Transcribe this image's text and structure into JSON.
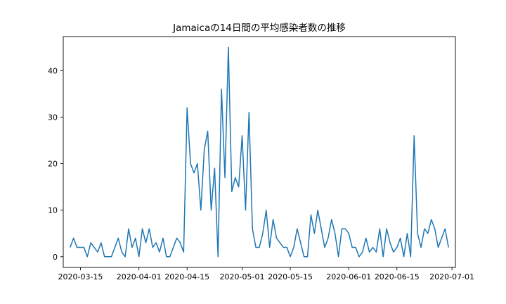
{
  "chart_data": {
    "type": "line",
    "title": "Jamaicaの14日間の平均感染者数の推移",
    "xlabel": "",
    "ylabel": "",
    "x_start": "2020-03-12",
    "x_range": [
      "2020-03-10",
      "2020-07-02"
    ],
    "ylim": [
      -2.3,
      47.3
    ],
    "x_ticks": [
      "2020-03-15",
      "2020-04-01",
      "2020-04-15",
      "2020-05-01",
      "2020-05-15",
      "2020-06-01",
      "2020-06-15",
      "2020-07-01"
    ],
    "y_ticks": [
      0,
      10,
      20,
      30,
      40
    ],
    "grid": false,
    "legend": "none",
    "series": [
      {
        "color": "#1f77b4",
        "x_dates": [
          "2020-03-12",
          "2020-03-13",
          "2020-03-14",
          "2020-03-15",
          "2020-03-16",
          "2020-03-17",
          "2020-03-18",
          "2020-03-19",
          "2020-03-20",
          "2020-03-21",
          "2020-03-22",
          "2020-03-23",
          "2020-03-24",
          "2020-03-25",
          "2020-03-26",
          "2020-03-27",
          "2020-03-28",
          "2020-03-29",
          "2020-03-30",
          "2020-03-31",
          "2020-04-01",
          "2020-04-02",
          "2020-04-03",
          "2020-04-04",
          "2020-04-05",
          "2020-04-06",
          "2020-04-07",
          "2020-04-08",
          "2020-04-09",
          "2020-04-10",
          "2020-04-11",
          "2020-04-12",
          "2020-04-13",
          "2020-04-14",
          "2020-04-15",
          "2020-04-16",
          "2020-04-17",
          "2020-04-18",
          "2020-04-19",
          "2020-04-20",
          "2020-04-21",
          "2020-04-22",
          "2020-04-23",
          "2020-04-24",
          "2020-04-25",
          "2020-04-26",
          "2020-04-27",
          "2020-04-28",
          "2020-04-29",
          "2020-04-30",
          "2020-05-01",
          "2020-05-02",
          "2020-05-03",
          "2020-05-04",
          "2020-05-05",
          "2020-05-06",
          "2020-05-07",
          "2020-05-08",
          "2020-05-09",
          "2020-05-10",
          "2020-05-11",
          "2020-05-12",
          "2020-05-13",
          "2020-05-14",
          "2020-05-15",
          "2020-05-16",
          "2020-05-17",
          "2020-05-18",
          "2020-05-19",
          "2020-05-20",
          "2020-05-21",
          "2020-05-22",
          "2020-05-23",
          "2020-05-24",
          "2020-05-25",
          "2020-05-26",
          "2020-05-27",
          "2020-05-28",
          "2020-05-29",
          "2020-05-30",
          "2020-05-31",
          "2020-06-01",
          "2020-06-02",
          "2020-06-03",
          "2020-06-04",
          "2020-06-05",
          "2020-06-06",
          "2020-06-07",
          "2020-06-08",
          "2020-06-09",
          "2020-06-10",
          "2020-06-11",
          "2020-06-12",
          "2020-06-13",
          "2020-06-14",
          "2020-06-15",
          "2020-06-16",
          "2020-06-17",
          "2020-06-18",
          "2020-06-19",
          "2020-06-20",
          "2020-06-21",
          "2020-06-22",
          "2020-06-23",
          "2020-06-24",
          "2020-06-25",
          "2020-06-26",
          "2020-06-27",
          "2020-06-28",
          "2020-06-29",
          "2020-06-30"
        ],
        "values": [
          2,
          4,
          2,
          2,
          2,
          0,
          3,
          2,
          1,
          3,
          0,
          0,
          0,
          2,
          4,
          1,
          0,
          6,
          2,
          4,
          0,
          6,
          3,
          6,
          2,
          3,
          1,
          4,
          0,
          0,
          2,
          4,
          3,
          1,
          32,
          20,
          18,
          20,
          10,
          23,
          27,
          10,
          19,
          0,
          36,
          17,
          45,
          14,
          17,
          15,
          26,
          10,
          31,
          6,
          2,
          2,
          5,
          10,
          2,
          8,
          4,
          3,
          2,
          2,
          0,
          2,
          6,
          3,
          0,
          0,
          9,
          5,
          10,
          6,
          2,
          4,
          8,
          5,
          0,
          6,
          6,
          5,
          2,
          2,
          0,
          1,
          4,
          1,
          2,
          1,
          6,
          0,
          6,
          3,
          1,
          2,
          4,
          0,
          5,
          0,
          26,
          5,
          2,
          6,
          5,
          8,
          6,
          2,
          4,
          6,
          2
        ]
      }
    ]
  }
}
